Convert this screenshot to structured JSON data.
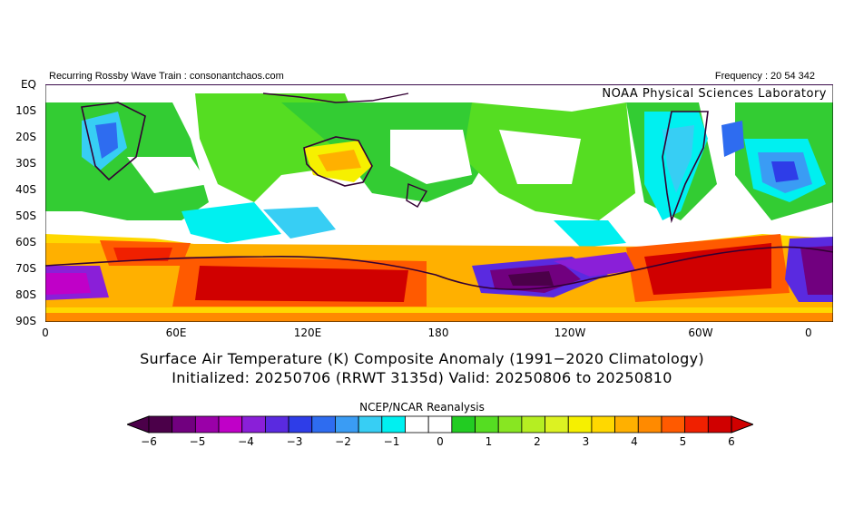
{
  "header": {
    "left_text": "Recurring Rossby Wave Train : consonantchaos.com",
    "right_text": "Frequency : 20 54 342",
    "lab": "NOAA Physical Sciences Laboratory"
  },
  "axes": {
    "lat_labels": [
      "EQ",
      "10S",
      "20S",
      "30S",
      "40S",
      "50S",
      "60S",
      "70S",
      "80S",
      "90S"
    ],
    "lon_labels": [
      "0",
      "60E",
      "120E",
      "180",
      "120W",
      "60W",
      "0"
    ]
  },
  "title": {
    "line1": "Surface Air Temperature (K) Composite Anomaly (1991−2020 Climatology)",
    "line2": "Initialized: 20250706 (RRWT 3135d) Valid: 20250806 to 20250810"
  },
  "source": "NCEP/NCAR Reanalysis",
  "colorbar": {
    "tick_labels": [
      "−6",
      "−5",
      "−4",
      "−3",
      "−2",
      "−1",
      "0",
      "1",
      "2",
      "3",
      "4",
      "5",
      "6"
    ],
    "colors": [
      "#4b0049",
      "#71007f",
      "#9a00a8",
      "#c000c8",
      "#8a1fd8",
      "#5a2ae0",
      "#2e3de8",
      "#2e6cf0",
      "#3a9cf4",
      "#37cef4",
      "#00f0f0",
      "#ffffff",
      "#ffffff",
      "#22cc22",
      "#55dd22",
      "#88e622",
      "#b5ee22",
      "#dcf222",
      "#f6f000",
      "#ffd800",
      "#ffb000",
      "#ff8a00",
      "#ff5a00",
      "#f02000",
      "#d00000"
    ]
  }
}
